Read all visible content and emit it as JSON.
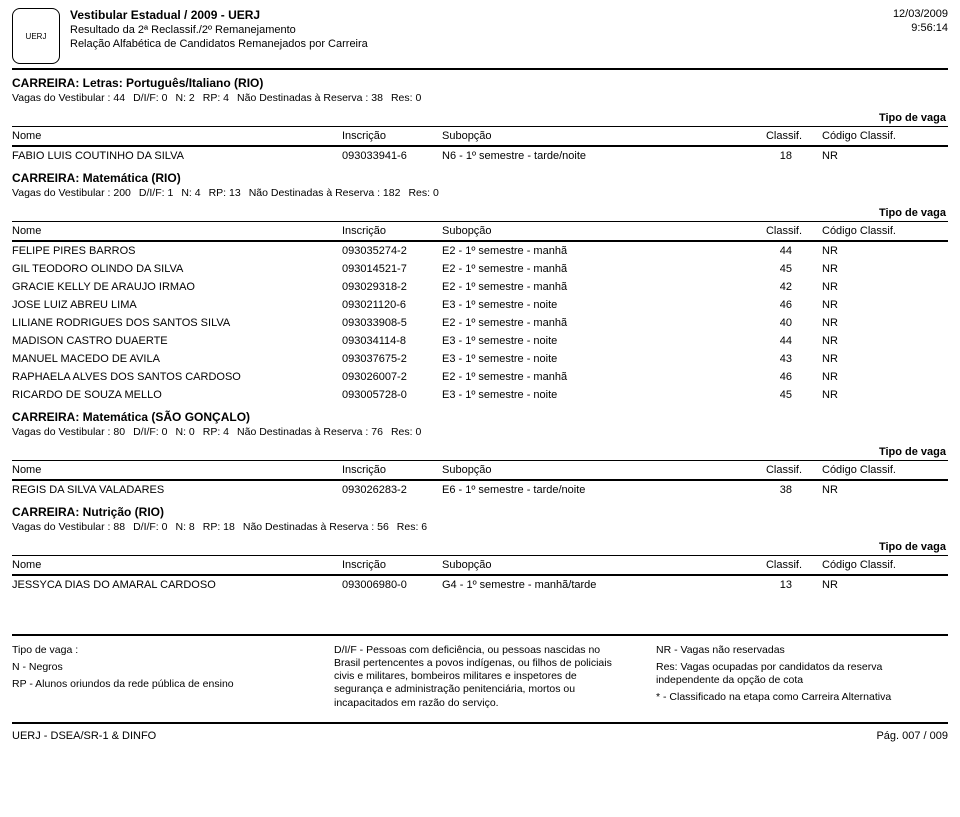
{
  "header": {
    "title": "Vestibular Estadual / 2009 - UERJ",
    "sub1": "Resultado da 2ª Reclassif./2º Remanejamento",
    "sub2": "Relação Alfabética de Candidatos Remanejados por Carreira",
    "date": "12/03/2009",
    "time": "9:56:14",
    "logo_text": "UERJ"
  },
  "labels": {
    "carreira": "CARREIRA:",
    "vagas_vest": "Vagas do Vestibular :",
    "diif": "D/I/F:",
    "n": "N:",
    "rp": "RP:",
    "naodest": "Não Destinadas à Reserva :",
    "res": "Res:",
    "tipo_vaga": "Tipo de vaga",
    "col_nome": "Nome",
    "col_inscr": "Inscrição",
    "col_subop": "Subopção",
    "col_classif": "Classif.",
    "col_codigo": "Código Classif."
  },
  "sections": [
    {
      "career": "Letras: Português/Italiano (RIO)",
      "vagas": {
        "vest": "44",
        "diif": "0",
        "n": "2",
        "rp": "4",
        "naodest": "38",
        "res": "0"
      },
      "rows": [
        {
          "nome": "FABIO LUIS COUTINHO DA SILVA",
          "inscr": "093033941-6",
          "subop": "N6 - 1º semestre  - tarde/noite",
          "classif": "18",
          "codigo": "NR"
        }
      ]
    },
    {
      "career": "Matemática (RIO)",
      "vagas": {
        "vest": "200",
        "diif": "1",
        "n": "4",
        "rp": "13",
        "naodest": "182",
        "res": "0"
      },
      "rows": [
        {
          "nome": "FELIPE PIRES BARROS",
          "inscr": "093035274-2",
          "subop": "E2 - 1º semestre  - manhã",
          "classif": "44",
          "codigo": "NR"
        },
        {
          "nome": "GIL TEODORO OLINDO DA SILVA",
          "inscr": "093014521-7",
          "subop": "E2 - 1º semestre  - manhã",
          "classif": "45",
          "codigo": "NR"
        },
        {
          "nome": "GRACIE KELLY DE ARAUJO IRMAO",
          "inscr": "093029318-2",
          "subop": "E2 - 1º semestre  - manhã",
          "classif": "42",
          "codigo": "NR"
        },
        {
          "nome": "JOSE LUIZ ABREU LIMA",
          "inscr": "093021120-6",
          "subop": "E3 - 1º semestre  - noite",
          "classif": "46",
          "codigo": "NR"
        },
        {
          "nome": "LILIANE RODRIGUES DOS SANTOS SILVA",
          "inscr": "093033908-5",
          "subop": "E2 - 1º semestre  - manhã",
          "classif": "40",
          "codigo": "NR"
        },
        {
          "nome": "MADISON CASTRO DUAERTE",
          "inscr": "093034114-8",
          "subop": "E3 - 1º semestre  - noite",
          "classif": "44",
          "codigo": "NR"
        },
        {
          "nome": "MANUEL MACEDO DE AVILA",
          "inscr": "093037675-2",
          "subop": "E3 - 1º semestre  - noite",
          "classif": "43",
          "codigo": "NR"
        },
        {
          "nome": "RAPHAELA ALVES DOS SANTOS CARDOSO",
          "inscr": "093026007-2",
          "subop": "E2 - 1º semestre  - manhã",
          "classif": "46",
          "codigo": "NR"
        },
        {
          "nome": "RICARDO DE SOUZA MELLO",
          "inscr": "093005728-0",
          "subop": "E3 - 1º semestre  - noite",
          "classif": "45",
          "codigo": "NR"
        }
      ]
    },
    {
      "career": "Matemática (SÃO GONÇALO)",
      "vagas": {
        "vest": "80",
        "diif": "0",
        "n": "0",
        "rp": "4",
        "naodest": "76",
        "res": "0"
      },
      "rows": [
        {
          "nome": "REGIS DA SILVA VALADARES",
          "inscr": "093026283-2",
          "subop": "E6 - 1º semestre  - tarde/noite",
          "classif": "38",
          "codigo": "NR"
        }
      ]
    },
    {
      "career": "Nutrição (RIO)",
      "vagas": {
        "vest": "88",
        "diif": "0",
        "n": "8",
        "rp": "18",
        "naodest": "56",
        "res": "6"
      },
      "rows": [
        {
          "nome": "JESSYCA DIAS DO AMARAL CARDOSO",
          "inscr": "093006980-0",
          "subop": "G4 - 1º semestre  - manhã/tarde",
          "classif": "13",
          "codigo": "NR"
        }
      ]
    }
  ],
  "legend": {
    "col1": {
      "l1": "Tipo de vaga :",
      "l2": "N -  Negros",
      "l3": "RP - Alunos oriundos da rede pública de ensino"
    },
    "col2": {
      "l1": "D/I/F - Pessoas com deficiência,  ou pessoas nascidas no Brasil pertencentes a povos indígenas, ou filhos de policiais civis e militares, bombeiros militares e  inspetores de segurança e administração  penitenciária, mortos ou incapacitados em razão do serviço."
    },
    "col3": {
      "l1": "NR - Vagas não reservadas",
      "l2": "Res: Vagas ocupadas por candidatos da reserva independente da opção de cota",
      "l3": "* - Classificado na etapa como Carreira Alternativa"
    }
  },
  "footer": {
    "left": "UERJ - DSEA/SR-1 & DINFO",
    "right": "Pág. 007 / 009"
  }
}
